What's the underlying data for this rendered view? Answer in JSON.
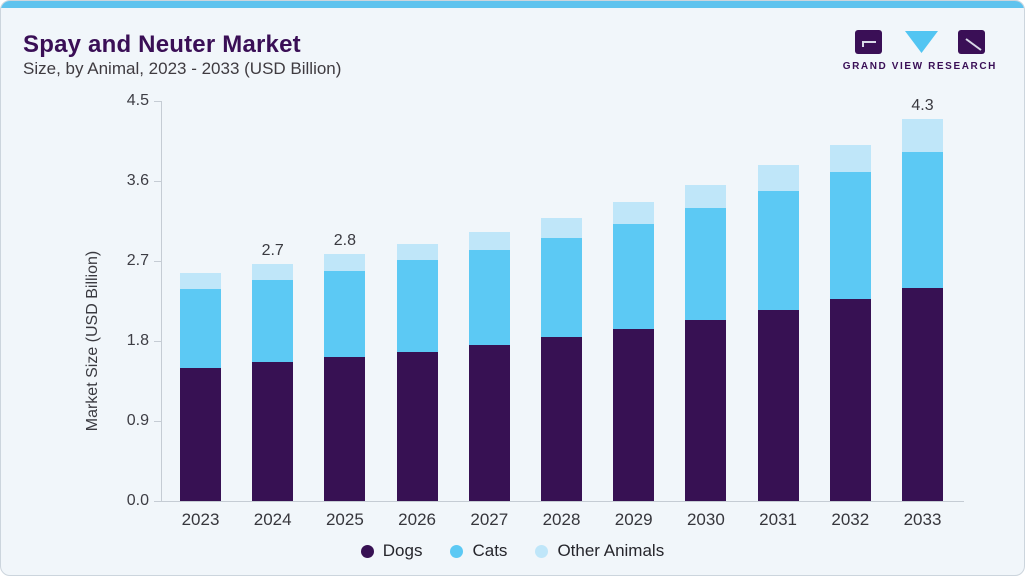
{
  "header": {
    "title": "Spay and Neuter Market",
    "subtitle": "Size, by Animal, 2023 - 2033 (USD Billion)"
  },
  "logo": {
    "text": "GRAND VIEW RESEARCH"
  },
  "chart_data": {
    "type": "bar",
    "stacked": true,
    "title": "Spay and Neuter Market Size, by Animal, 2023 - 2033 (USD Billion)",
    "ylabel": "Market Size (USD Billion)",
    "ylim": [
      0,
      4.5
    ],
    "ytick_labels": [
      "0.0",
      "0.9",
      "1.8",
      "2.7",
      "3.6",
      "4.5"
    ],
    "grid": false,
    "legend_position": "bottom",
    "categories": [
      "2023",
      "2024",
      "2025",
      "2026",
      "2027",
      "2028",
      "2029",
      "2030",
      "2031",
      "2032",
      "2033"
    ],
    "series": [
      {
        "name": "Dogs",
        "color": "#371153",
        "values": [
          1.5,
          1.56,
          1.62,
          1.68,
          1.76,
          1.84,
          1.94,
          2.04,
          2.15,
          2.27,
          2.4
        ]
      },
      {
        "name": "Cats",
        "color": "#5cc9f4",
        "values": [
          0.88,
          0.93,
          0.97,
          1.03,
          1.06,
          1.12,
          1.18,
          1.26,
          1.34,
          1.43,
          1.53
        ]
      },
      {
        "name": "Other Animals",
        "color": "#bfe6f9",
        "values": [
          0.18,
          0.18,
          0.19,
          0.18,
          0.21,
          0.22,
          0.24,
          0.26,
          0.29,
          0.31,
          0.37
        ]
      }
    ],
    "totals_shown": {
      "2024": "2.7",
      "2025": "2.8",
      "2033": "4.3"
    }
  },
  "colors": {
    "card_background": "#f1f6fa",
    "card_border": "#ccd5dd",
    "top_accent": "#5fc3ee",
    "title_text": "#3a0f56",
    "subtitle_text": "#3f3b40",
    "axis_line": "#c5ccd4",
    "tick_text": "#3d3d44",
    "legend_text": "#26262c",
    "logo_purple": "#3a0f56",
    "logo_blue": "#52c5f2"
  }
}
